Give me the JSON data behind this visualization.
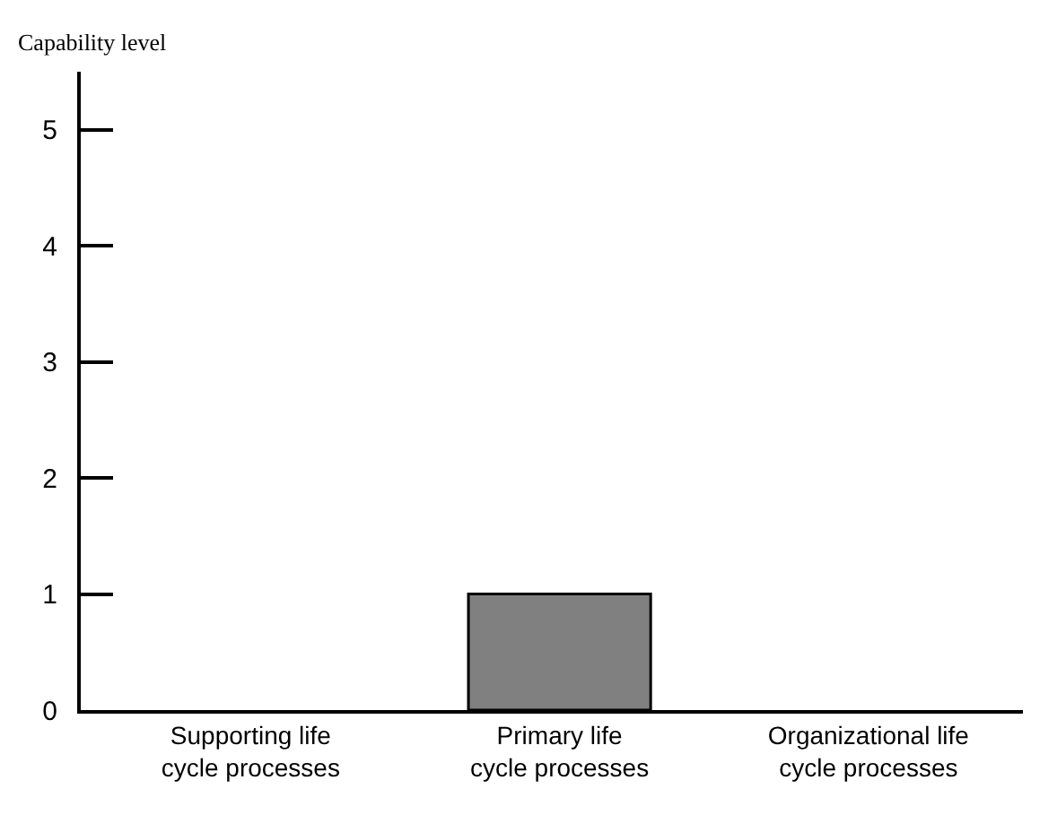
{
  "chart_data": {
    "type": "bar",
    "ylabel": "Capability level",
    "categories": [
      "Supporting life cycle processes",
      "Primary life cycle processes",
      "Organizational life cycle processes"
    ],
    "values": [
      0,
      1,
      0
    ],
    "color": "#808080",
    "ylim": [
      0,
      5.5
    ],
    "yticks": [
      0,
      1,
      2,
      3,
      4,
      5
    ],
    "legend": false
  }
}
